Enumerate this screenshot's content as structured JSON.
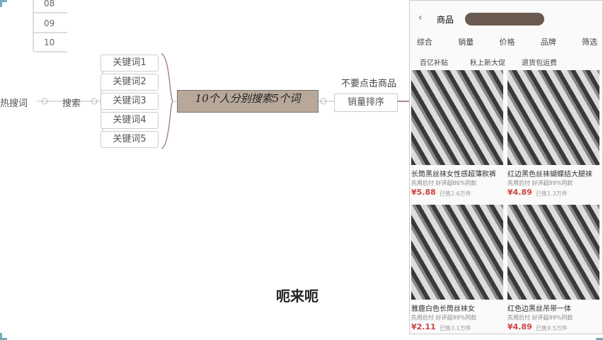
{
  "mindmap": {
    "numbers": [
      "08",
      "09",
      "10"
    ],
    "root": "热搜词",
    "search": "搜索",
    "keywords": [
      "关键词1",
      "关键词2",
      "关键词3",
      "关键词4",
      "关键词5"
    ],
    "center": "10个人分别搜索5个词",
    "note": "不要点击商品",
    "sort": "销量排序"
  },
  "phone": {
    "tab": "商品",
    "filters": [
      "综合",
      "销量",
      "价格",
      "品牌",
      "筛选"
    ],
    "tags": [
      "百亿补贴",
      "秋上新大促",
      "退货包运费"
    ],
    "products": [
      {
        "title": "长筒黑丝袜女性感超薄款裤",
        "info": "先用后付 好评超86%同款",
        "price": "¥5.88",
        "sold": "已售2.6万件"
      },
      {
        "title": "红边黑色丝袜蝴蝶结大腿袜",
        "info": "先用后付 好评超99%同款",
        "price": "¥4.89",
        "sold": "已售1.3万件"
      },
      {
        "title": "雅鹿白色长筒丝袜女",
        "info": "先用后付 好评超99%同款",
        "price": "¥2.11",
        "sold": "已售3.1万件"
      },
      {
        "title": "红色边黑丝吊带一体",
        "info": "先用后付 好评超99%同款",
        "price": "¥4.89",
        "sold": "已售9.5万件"
      }
    ]
  },
  "caption": "呃来呃"
}
